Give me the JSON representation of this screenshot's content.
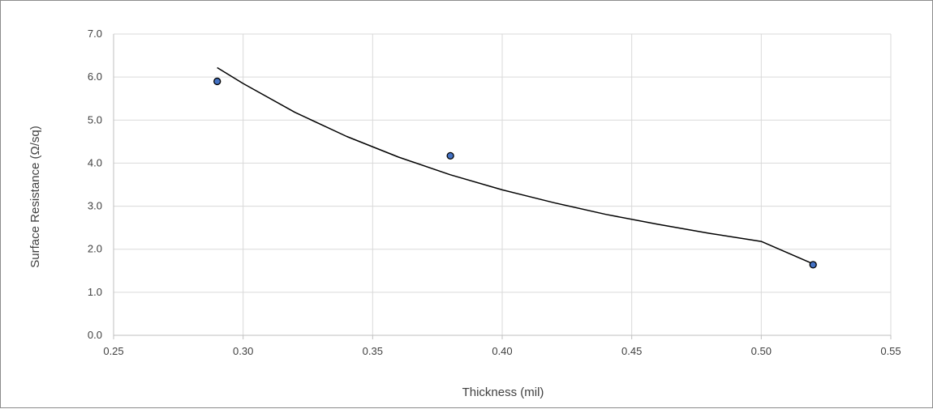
{
  "chart_data": {
    "type": "scatter",
    "title": "",
    "xlabel": "Thickness (mil)",
    "ylabel": "Surface Resistance (Ω/sq)",
    "xlim": [
      0.25,
      0.55
    ],
    "ylim": [
      0.0,
      7.0
    ],
    "x_ticks": [
      "0.25",
      "0.30",
      "0.35",
      "0.40",
      "0.45",
      "0.50",
      "0.55"
    ],
    "y_ticks": [
      "0.0",
      "1.0",
      "2.0",
      "3.0",
      "4.0",
      "5.0",
      "6.0",
      "7.0"
    ],
    "grid": true,
    "legend": "none",
    "series": [
      {
        "x": [
          0.29,
          0.38,
          0.52
        ],
        "y": [
          5.9,
          4.17,
          1.64
        ]
      }
    ],
    "trendline": {
      "type": "power",
      "x": [
        0.29,
        0.3,
        0.32,
        0.34,
        0.36,
        0.38,
        0.4,
        0.42,
        0.44,
        0.46,
        0.48,
        0.5,
        0.52
      ],
      "y": [
        6.22,
        5.85,
        5.18,
        4.62,
        4.14,
        3.73,
        3.38,
        3.08,
        2.81,
        2.58,
        2.37,
        2.18,
        1.66
      ]
    },
    "colors": {
      "marker_fill": "#4472c4",
      "marker_stroke": "#000000",
      "trendline": "#000000",
      "grid": "#d9d9d9",
      "axis": "#bfbfbf",
      "text": "#404040"
    }
  }
}
